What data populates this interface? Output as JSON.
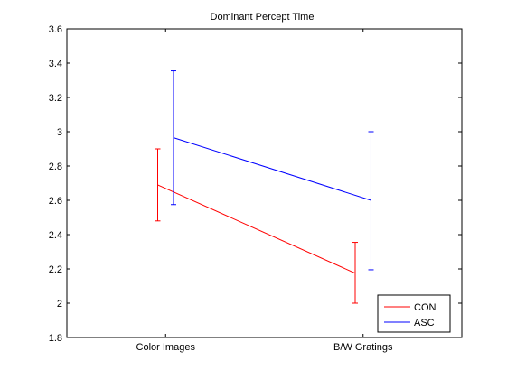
{
  "chart_data": {
    "type": "line",
    "title": "Dominant Percept Time",
    "xlabel": "",
    "ylabel": "",
    "categories": [
      "Color Images",
      "B/W Gratings"
    ],
    "ylim": [
      1.8,
      3.6
    ],
    "yticks": [
      1.8,
      2,
      2.2,
      2.4,
      2.6,
      2.8,
      3,
      3.2,
      3.4,
      3.6
    ],
    "ytick_labels": [
      "1.8",
      "2",
      "2.2",
      "2.4",
      "2.6",
      "2.8",
      "3",
      "3.2",
      "3.4",
      "3.6"
    ],
    "grid": false,
    "legend_position": "bottom-right",
    "series": [
      {
        "name": "CON",
        "color": "#ff0000",
        "values": [
          2.69,
          2.175
        ],
        "error_lower": [
          2.48,
          2.0
        ],
        "error_upper": [
          2.9,
          2.355
        ],
        "x_offset": -0.04
      },
      {
        "name": "ASC",
        "color": "#0000ff",
        "values": [
          2.965,
          2.6
        ],
        "error_lower": [
          2.575,
          2.195
        ],
        "error_upper": [
          3.355,
          3.0
        ],
        "x_offset": 0.04
      }
    ]
  }
}
